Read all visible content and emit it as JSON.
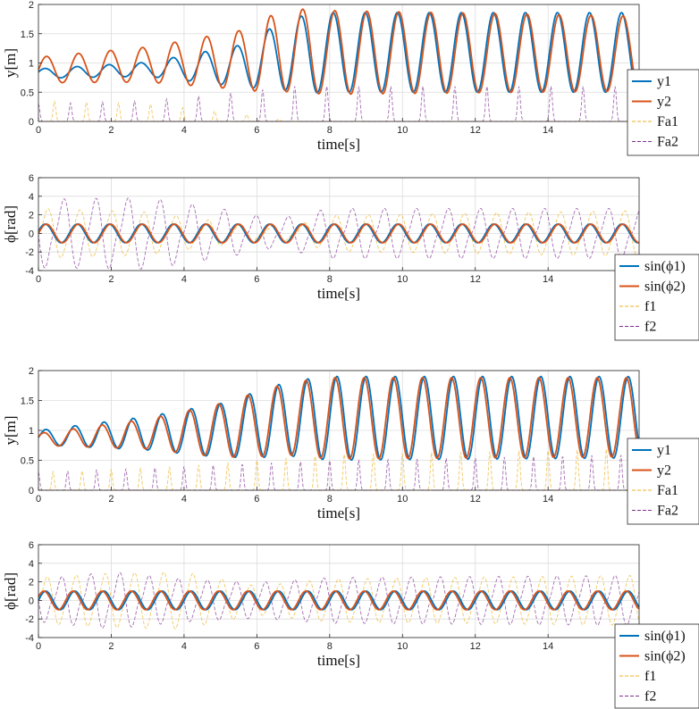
{
  "colors": {
    "blue": "#0072BD",
    "orange": "#D95319",
    "yellow": "#EDB120",
    "purple": "#7E2F8E",
    "grid": "#dcdcdc",
    "axis": "#262626"
  },
  "chart_data": [
    {
      "type": "line",
      "kind": "height",
      "xlabel": "time[s]",
      "ylabel": "y[m]",
      "xlim": [
        0,
        16.5
      ],
      "ylim": [
        0,
        2
      ],
      "xticks": [
        "0",
        "2",
        "4",
        "6",
        "8",
        "10",
        "12",
        "14"
      ],
      "yticks": [
        "0",
        "0.5",
        "1",
        "1.5",
        "2"
      ],
      "grid": true,
      "legend_position": "lower-right-outside",
      "legend": [
        "y1",
        "y2",
        "Fa1",
        "Fa2"
      ],
      "series": [
        {
          "name": "y1",
          "style": "solid",
          "color": "blue",
          "period": 0.88,
          "phase": 0.3,
          "amp_env": [
            [
              0,
              0.08
            ],
            [
              3,
              0.12
            ],
            [
              5.5,
              0.35
            ],
            [
              6.5,
              0.55
            ],
            [
              7.5,
              0.68
            ],
            [
              16.5,
              0.68
            ]
          ],
          "mean_env": [
            [
              0,
              0.82
            ],
            [
              5.5,
              0.95
            ],
            [
              7,
              1.15
            ],
            [
              8,
              1.18
            ],
            [
              16.5,
              1.18
            ]
          ]
        },
        {
          "name": "y2",
          "style": "solid",
          "color": "orange",
          "period": 0.88,
          "phase": 0.0,
          "amp_env": [
            [
              0,
              0.22
            ],
            [
              3,
              0.3
            ],
            [
              5.5,
              0.5
            ],
            [
              6.5,
              0.68
            ],
            [
              7.5,
              0.72
            ],
            [
              16.5,
              0.64
            ]
          ],
          "mean_env": [
            [
              0,
              0.88
            ],
            [
              5.5,
              1.05
            ],
            [
              7,
              1.22
            ],
            [
              8,
              1.18
            ],
            [
              16.5,
              1.16
            ]
          ]
        },
        {
          "name": "Fa1",
          "style": "dashed",
          "color": "yellow",
          "period": 0.88,
          "pulse_peak": [
            [
              0,
              0.35
            ],
            [
              3,
              0.3
            ],
            [
              6,
              0.1
            ],
            [
              7,
              0
            ],
            [
              16.5,
              0
            ]
          ]
        },
        {
          "name": "Fa2",
          "style": "dashed",
          "color": "purple",
          "period": 0.88,
          "pulse_peak": [
            [
              0,
              0.3
            ],
            [
              3,
              0.35
            ],
            [
              5.5,
              0.5
            ],
            [
              7,
              0.6
            ],
            [
              16.5,
              0.6
            ]
          ]
        }
      ]
    },
    {
      "type": "line",
      "kind": "phase",
      "xlabel": "time[s]",
      "ylabel": "ϕ[rad]",
      "xlim": [
        0,
        16.5
      ],
      "ylim": [
        -4,
        6
      ],
      "xticks": [
        "0",
        "2",
        "4",
        "6",
        "8",
        "10",
        "12",
        "14"
      ],
      "yticks": [
        "-4",
        "-2",
        "0",
        "2",
        "4",
        "6"
      ],
      "grid": true,
      "legend_position": "lower-right-outside",
      "legend": [
        "sin(ϕ1)",
        "sin(ϕ2)",
        "f1",
        "f2"
      ],
      "series": [
        {
          "name": "sin(ϕ1)",
          "style": "solid",
          "color": "blue",
          "period": 0.88,
          "phase": 0.25
        },
        {
          "name": "sin(ϕ2)",
          "style": "solid",
          "color": "orange",
          "period": 0.88,
          "phase": 0.0
        },
        {
          "name": "f1",
          "style": "dashed",
          "color": "yellow",
          "period": 0.88,
          "amp_env": [
            [
              0,
              3.5
            ],
            [
              3,
              3.0
            ],
            [
              6,
              1.0
            ],
            [
              7,
              1.0
            ],
            [
              8,
              2.5
            ],
            [
              16.5,
              3.2
            ]
          ]
        },
        {
          "name": "f2",
          "style": "dashed",
          "color": "purple",
          "period": 0.88,
          "amp_env": [
            [
              0,
              4.8
            ],
            [
              3,
              5.0
            ],
            [
              5,
              3.5
            ],
            [
              6.5,
              2.0
            ],
            [
              8,
              3.5
            ],
            [
              16.5,
              3.5
            ]
          ]
        }
      ]
    },
    {
      "type": "line",
      "kind": "height",
      "xlabel": "time[s]",
      "ylabel": "y[m]",
      "xlim": [
        0,
        16.5
      ],
      "ylim": [
        0,
        2
      ],
      "xticks": [
        "0",
        "2",
        "4",
        "6",
        "8",
        "10",
        "12",
        "14"
      ],
      "yticks": [
        "0",
        "0.5",
        "1",
        "1.5",
        "2"
      ],
      "grid": true,
      "legend_position": "lower-right-outside",
      "legend": [
        "y1",
        "y2",
        "Fa1",
        "Fa2"
      ],
      "series": [
        {
          "name": "y1",
          "style": "solid",
          "color": "blue",
          "period": 0.8,
          "phase": 0.0,
          "amp_env": [
            [
              0,
              0.12
            ],
            [
              3,
              0.28
            ],
            [
              5,
              0.45
            ],
            [
              6.5,
              0.6
            ],
            [
              8,
              0.7
            ],
            [
              16.5,
              0.68
            ]
          ],
          "mean_env": [
            [
              0,
              0.88
            ],
            [
              5,
              1.0
            ],
            [
              7,
              1.2
            ],
            [
              16.5,
              1.22
            ]
          ]
        },
        {
          "name": "y2",
          "style": "solid",
          "color": "orange",
          "period": 0.8,
          "phase": 0.4,
          "amp_env": [
            [
              0,
              0.1
            ],
            [
              3,
              0.25
            ],
            [
              5,
              0.45
            ],
            [
              6.5,
              0.58
            ],
            [
              8,
              0.68
            ],
            [
              16.5,
              0.66
            ]
          ],
          "mean_env": [
            [
              0,
              0.85
            ],
            [
              5,
              1.0
            ],
            [
              7,
              1.2
            ],
            [
              16.5,
              1.22
            ]
          ]
        },
        {
          "name": "Fa1",
          "style": "dashed",
          "color": "yellow",
          "period": 0.8,
          "pulse_peak": [
            [
              0,
              0.3
            ],
            [
              4,
              0.4
            ],
            [
              8,
              0.6
            ],
            [
              16.5,
              0.7
            ]
          ]
        },
        {
          "name": "Fa2",
          "style": "dashed",
          "color": "purple",
          "period": 0.8,
          "pulse_peak": [
            [
              0,
              0.3
            ],
            [
              4,
              0.4
            ],
            [
              8,
              0.5
            ],
            [
              16.5,
              0.6
            ]
          ]
        }
      ]
    },
    {
      "type": "line",
      "kind": "phase",
      "xlabel": "time[s]",
      "ylabel": "ϕ[rad]",
      "xlim": [
        0,
        16.5
      ],
      "ylim": [
        -4,
        6
      ],
      "xticks": [
        "0",
        "2",
        "4",
        "6",
        "8",
        "10",
        "12",
        "14"
      ],
      "yticks": [
        "-4",
        "-2",
        "0",
        "2",
        "4",
        "6"
      ],
      "grid": true,
      "legend_position": "lower-right-outside",
      "legend": [
        "sin(ϕ1)",
        "sin(ϕ2)",
        "f1",
        "f2"
      ],
      "series": [
        {
          "name": "sin(ϕ1)",
          "style": "solid",
          "color": "blue",
          "period": 0.8,
          "phase": 0.0
        },
        {
          "name": "sin(ϕ2)",
          "style": "solid",
          "color": "orange",
          "period": 0.8,
          "phase": 0.4
        },
        {
          "name": "f1",
          "style": "dashed",
          "color": "yellow",
          "period": 0.8,
          "amp_env": [
            [
              0,
              3.2
            ],
            [
              2,
              3.8
            ],
            [
              4,
              4.0
            ],
            [
              6,
              2.0
            ],
            [
              8,
              3.0
            ],
            [
              16.5,
              3.5
            ]
          ]
        },
        {
          "name": "f2",
          "style": "dashed",
          "color": "purple",
          "period": 0.8,
          "amp_env": [
            [
              0,
              3.0
            ],
            [
              2,
              4.0
            ],
            [
              4,
              3.0
            ],
            [
              6,
              2.5
            ],
            [
              8,
              3.2
            ],
            [
              16.5,
              3.5
            ]
          ]
        }
      ]
    }
  ]
}
